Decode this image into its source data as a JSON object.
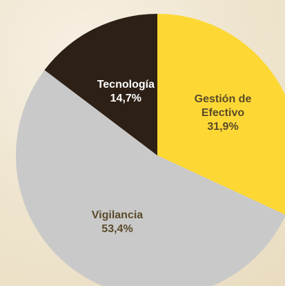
{
  "chart_data": {
    "type": "pie",
    "categories": [
      "Gestión de Efectivo",
      "Vigilancia",
      "Tecnología"
    ],
    "values": [
      31.9,
      53.4,
      14.7
    ],
    "value_labels": [
      "31,9%",
      "53,4%",
      "14,7%"
    ],
    "colors": [
      "#fdd835",
      "#c9c9c9",
      "#2d2016"
    ],
    "label_colors": [
      "#5a4a2a",
      "#5a4a2a",
      "#ffffff"
    ]
  }
}
